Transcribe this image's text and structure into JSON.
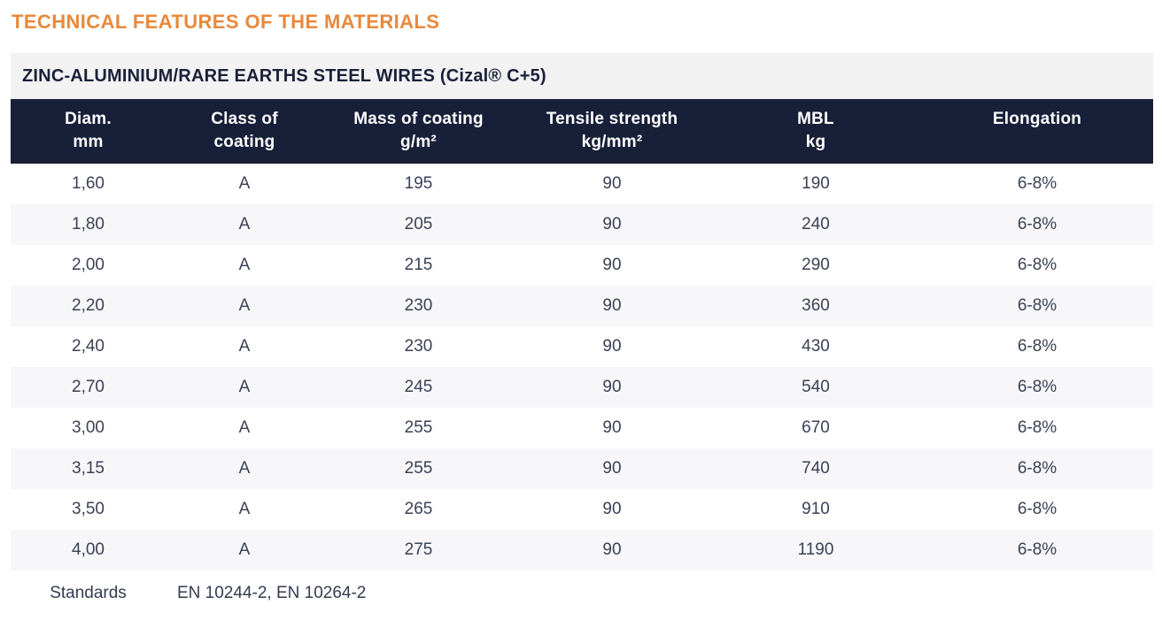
{
  "page": {
    "title": "TECHNICAL FEATURES OF THE MATERIALS"
  },
  "table": {
    "subtitle": "ZINC-ALUMINIUM/RARE EARTHS STEEL WIRES (Cizal® C+5)",
    "columns": [
      {
        "line1": "Diam.",
        "line2": "mm"
      },
      {
        "line1": "Class of",
        "line2": "coating"
      },
      {
        "line1": "Mass of coating",
        "line2": "g/m²"
      },
      {
        "line1": "Tensile strength",
        "line2": "kg/mm²"
      },
      {
        "line1": "MBL",
        "line2": "kg"
      },
      {
        "line1": "Elongation",
        "line2": ""
      }
    ],
    "rows": [
      [
        "1,60",
        "A",
        "195",
        "90",
        "190",
        "6-8%"
      ],
      [
        "1,80",
        "A",
        "205",
        "90",
        "240",
        "6-8%"
      ],
      [
        "2,00",
        "A",
        "215",
        "90",
        "290",
        "6-8%"
      ],
      [
        "2,20",
        "A",
        "230",
        "90",
        "360",
        "6-8%"
      ],
      [
        "2,40",
        "A",
        "230",
        "90",
        "430",
        "6-8%"
      ],
      [
        "2,70",
        "A",
        "245",
        "90",
        "540",
        "6-8%"
      ],
      [
        "3,00",
        "A",
        "255",
        "90",
        "670",
        "6-8%"
      ],
      [
        "3,15",
        "A",
        "255",
        "90",
        "740",
        "6-8%"
      ],
      [
        "3,50",
        "A",
        "265",
        "90",
        "910",
        "6-8%"
      ],
      [
        "4,00",
        "A",
        "275",
        "90",
        "1190",
        "6-8%"
      ]
    ],
    "footer": {
      "label": "Standards",
      "value": "EN 10244-2, EN 10264-2"
    }
  },
  "colors": {
    "accent_orange": "#e8893c",
    "header_navy": "#181f38",
    "subtitle_bar_bg": "#f2f2f3",
    "row_alt_bg": "#f7f7f9",
    "body_text": "#3a4154",
    "header_text": "#ffffff"
  }
}
